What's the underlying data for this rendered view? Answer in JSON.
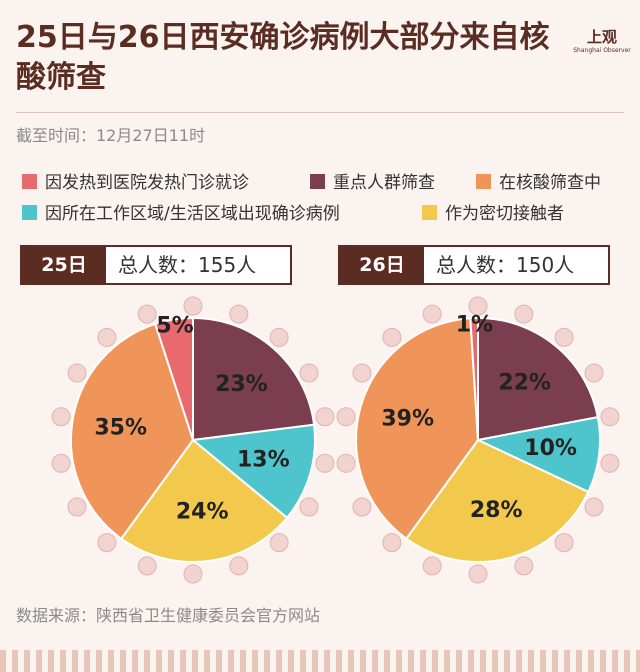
{
  "header": {
    "title": "25日与26日西安确诊病例大部分来自核酸筛查",
    "logo": "上观",
    "logo_sub": "Shanghai Observer"
  },
  "subtitle": "截至时间：12月27日11时",
  "legend": {
    "items": [
      "因发热到医院发热门诊就诊",
      "重点人群筛查",
      "在核酸筛查中",
      "因所在工作区域/生活区域出现确诊病例",
      "作为密切接触者"
    ],
    "colors": [
      "#e8696e",
      "#7a3e4f",
      "#f0955a",
      "#4ec5cc",
      "#f2c94c"
    ]
  },
  "chart_data": [
    {
      "type": "pie",
      "title": "25日",
      "subtitle": "总人数：155人",
      "values": [
        5,
        23,
        35,
        13,
        24
      ],
      "value_labels": [
        "5%",
        "23%",
        "35%",
        "13%",
        "24%"
      ]
    },
    {
      "type": "pie",
      "title": "26日",
      "subtitle": "总人数：150人",
      "values": [
        1,
        22,
        39,
        10,
        28
      ],
      "value_labels": [
        "1%",
        "22%",
        "39%",
        "10%",
        "28%"
      ]
    }
  ],
  "source": "数据来源：陕西省卫生健康委员会官方网站"
}
